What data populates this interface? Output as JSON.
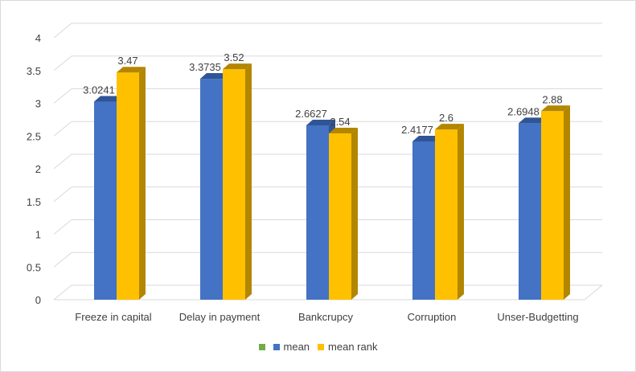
{
  "chart_data": {
    "type": "bar",
    "title": "",
    "xlabel": "",
    "ylabel": "",
    "categories": [
      "Freeze in capital",
      "Delay in payment",
      "Bankcrupcy",
      "Corruption",
      "Unser-Budgetting"
    ],
    "series": [
      {
        "name": "mean",
        "values": [
          3.0241,
          3.3735,
          2.6627,
          2.4177,
          2.6948
        ],
        "labels": [
          "3.0241",
          "3.3735",
          "2.6627",
          "2.4177",
          "2.6948"
        ],
        "color": "#4472c4",
        "side_color": "#2f5597"
      },
      {
        "name": "mean rank",
        "values": [
          3.47,
          3.52,
          2.54,
          2.6,
          2.88
        ],
        "labels": [
          "3.47",
          "3.52",
          "2.54",
          "2.6",
          "2.88"
        ],
        "color": "#ffc000",
        "side_color": "#b38600"
      }
    ],
    "legend_extra_marker_color": "#70ad47",
    "ylim": [
      0,
      4
    ],
    "yticks": [
      "0",
      "0.5",
      "1",
      "1.5",
      "2",
      "2.5",
      "3",
      "3.5",
      "4"
    ],
    "grid": true,
    "style": "3d-clustered-column",
    "legend_position": "bottom"
  }
}
